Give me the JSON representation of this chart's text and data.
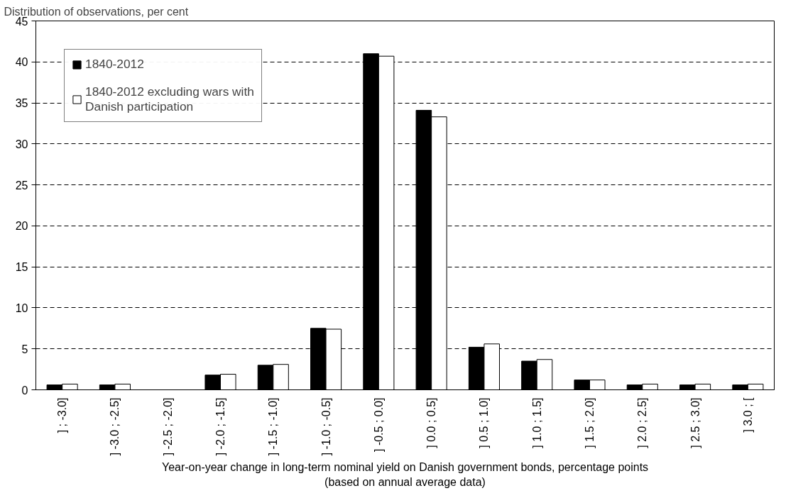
{
  "chart_data": {
    "type": "bar",
    "ylabel": "Distribution of observations, per cent",
    "xlabel": "Year-on-year change in long-term nominal yield on Danish government bonds, percentage points\n(based on annual average data)",
    "categories": [
      "] ; -3.0]",
      "] -3.0 ; -2.5]",
      "] -2.5 ; -2.0]",
      "] -2.0 ; -1.5]",
      "] -1.5 ; -1.0]",
      "] -1.0 ; -0.5]",
      "] -0.5 ; 0.0]",
      "] 0.0 ; 0.5]",
      "] 0.5 ; 1.0]",
      "] 1.0 ; 1.5]",
      "] 1.5 ; 2.0]",
      "] 2.0 ; 2.5]",
      "] 2.5 ; 3.0]",
      "] 3.0 ; ["
    ],
    "series": [
      {
        "name": "1840-2012",
        "color": "#000000",
        "values": [
          0.6,
          0.6,
          0,
          1.8,
          3.0,
          7.5,
          41.0,
          34.1,
          5.2,
          3.5,
          1.2,
          0.6,
          0.6,
          0.6
        ]
      },
      {
        "name": "1840-2012 excluding wars with\nDanish participation",
        "color": "#ffffff",
        "values": [
          0.7,
          0.7,
          0,
          1.9,
          3.1,
          7.4,
          40.7,
          33.3,
          5.6,
          3.7,
          1.2,
          0.7,
          0.7,
          0.7
        ]
      }
    ],
    "ylim": [
      0,
      45
    ],
    "yticks": [
      0,
      5,
      10,
      15,
      20,
      25,
      30,
      35,
      40,
      45
    ],
    "grid": "y",
    "legend": "top left"
  }
}
